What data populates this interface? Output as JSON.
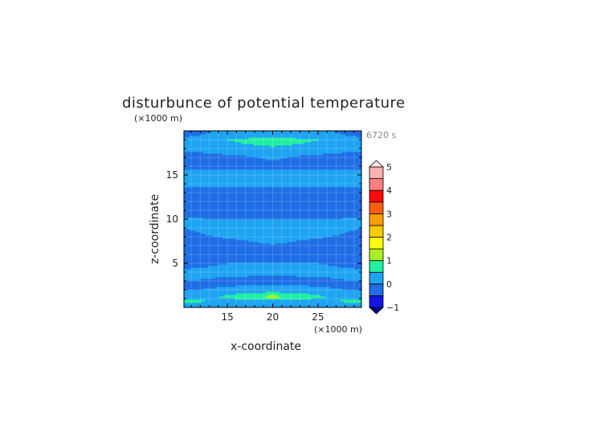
{
  "chart_data": {
    "type": "heatmap",
    "title": "disturbunce of potential temperature",
    "xlabel": "x-coordinate",
    "ylabel": "z-coordinate",
    "x_unit": "(×1000 m)",
    "y_unit": "(×1000 m)",
    "time_label": "6720 s",
    "xlim": [
      10.2,
      29.8
    ],
    "ylim": [
      0,
      20
    ],
    "x_ticks": [
      "15",
      "20",
      "25"
    ],
    "x_tick_values": [
      15,
      20,
      25
    ],
    "y_ticks": [
      "5",
      "10",
      "15"
    ],
    "y_tick_values": [
      5,
      10,
      15
    ],
    "grid": true,
    "colorbar": {
      "levels": [
        -1,
        -0.5,
        0,
        0.5,
        1,
        1.5,
        2,
        2.5,
        3,
        3.5,
        4,
        4.5,
        5
      ],
      "tick_labels": [
        "-1",
        "0",
        "1",
        "2",
        "3",
        "4",
        "5"
      ],
      "tick_values": [
        -1,
        0,
        1,
        2,
        3,
        4,
        5
      ],
      "colors": [
        "#1414e6",
        "#1f6ee6",
        "#1ea4f2",
        "#20f0a0",
        "#a8f020",
        "#ffff10",
        "#ffcc00",
        "#ffa000",
        "#ff6010",
        "#ff0a0a",
        "#ff8080",
        "#ffb0b0"
      ],
      "under_color": "#000090",
      "over_color": "#ffe4e4",
      "placement": "right"
    },
    "x": [
      10.5,
      15,
      20,
      25,
      29.5
    ],
    "z": [
      0.25,
      0.75,
      1.25,
      1.75,
      2.25,
      2.75,
      3.25,
      3.75,
      4.25,
      4.75,
      5.5,
      6.5,
      7.5,
      8.5,
      9.5,
      10.5,
      11.5,
      12.5,
      13.5,
      14,
      15,
      15.5,
      16,
      17,
      17.5,
      18,
      18.5,
      19,
      19.5,
      20
    ],
    "values": [
      [
        0.3,
        0.2,
        0.2,
        0.2,
        0.3
      ],
      [
        0.7,
        0.3,
        0.3,
        0.3,
        0.7
      ],
      [
        0.2,
        0.6,
        1.2,
        0.6,
        0.2
      ],
      [
        0.1,
        0.3,
        0.5,
        0.3,
        0.1
      ],
      [
        -0.2,
        0.1,
        0.2,
        0.1,
        -0.2
      ],
      [
        -0.2,
        -0.2,
        -0.1,
        -0.2,
        -0.2
      ],
      [
        0.1,
        -0.1,
        -0.2,
        -0.1,
        0.1
      ],
      [
        0.2,
        0.1,
        0.1,
        0.1,
        0.2
      ],
      [
        0.1,
        0.2,
        0.2,
        0.2,
        0.1
      ],
      [
        -0.2,
        0.1,
        0.1,
        0.1,
        -0.2
      ],
      [
        -0.2,
        -0.2,
        -0.2,
        -0.2,
        -0.2
      ],
      [
        -0.2,
        -0.2,
        -0.2,
        -0.2,
        -0.2
      ],
      [
        -0.2,
        -0.1,
        0.1,
        -0.1,
        -0.2
      ],
      [
        -0.1,
        0.2,
        0.2,
        0.2,
        -0.1
      ],
      [
        0.2,
        0.2,
        0.2,
        0.2,
        0.2
      ],
      [
        -0.1,
        -0.2,
        -0.2,
        -0.2,
        -0.1
      ],
      [
        -0.2,
        -0.2,
        -0.2,
        -0.2,
        -0.2
      ],
      [
        -0.2,
        -0.2,
        -0.2,
        -0.2,
        -0.2
      ],
      [
        -0.1,
        -0.1,
        -0.1,
        -0.1,
        -0.1
      ],
      [
        0.2,
        0.2,
        0.2,
        0.2,
        0.2
      ],
      [
        0.2,
        0.2,
        0.2,
        0.2,
        0.2
      ],
      [
        0.1,
        0.1,
        0.1,
        0.1,
        0.1
      ],
      [
        -0.2,
        -0.2,
        -0.2,
        -0.2,
        -0.2
      ],
      [
        -0.2,
        -0.2,
        0.1,
        -0.2,
        -0.2
      ],
      [
        -0.1,
        0.1,
        0.2,
        0.1,
        -0.1
      ],
      [
        0.2,
        0.2,
        0.4,
        0.2,
        0.2
      ],
      [
        0.2,
        0.4,
        0.6,
        0.4,
        0.2
      ],
      [
        0.2,
        0.5,
        0.8,
        0.5,
        0.2
      ],
      [
        -0.1,
        0.2,
        0.3,
        0.2,
        -0.1
      ],
      [
        -0.2,
        0.1,
        0.2,
        0.1,
        -0.2
      ]
    ]
  }
}
